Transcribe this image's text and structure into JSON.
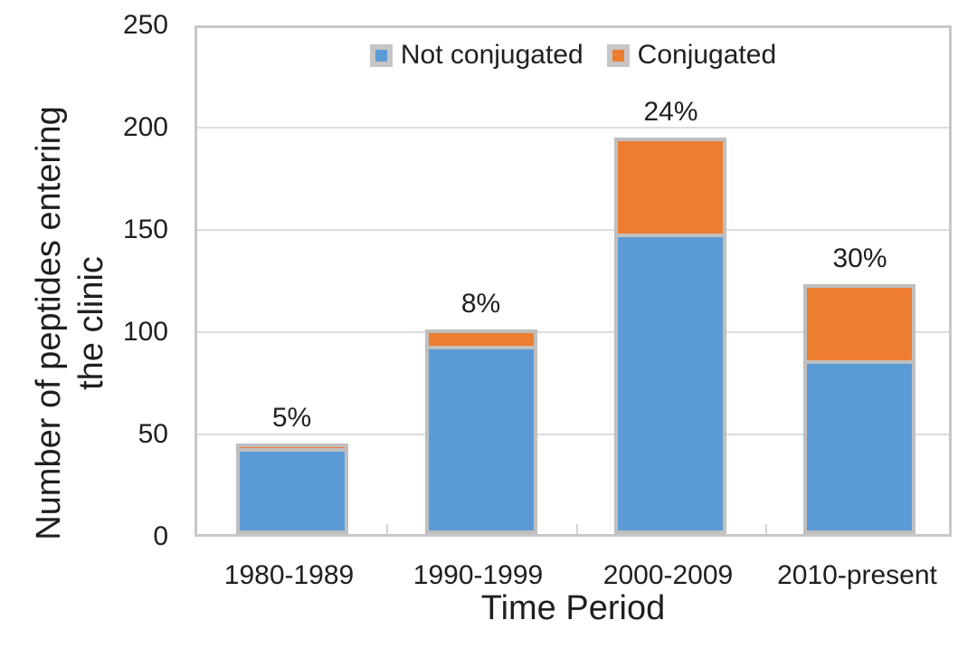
{
  "chart_data": {
    "type": "bar",
    "stacked": true,
    "title": "",
    "xlabel": "Time Period",
    "ylabel": "Number of peptides entering the clinic",
    "ylabel_lines": [
      "Number of peptides entering",
      "the clinic"
    ],
    "categories": [
      "1980-1989",
      "1990-1999",
      "2000-2009",
      "2010-present"
    ],
    "series": [
      {
        "name": "Not conjugated",
        "color": "#5B9BD5",
        "values": [
          42,
          92,
          147,
          85
        ]
      },
      {
        "name": "Conjugated",
        "color": "#ED7D31",
        "values": [
          2,
          8,
          47,
          37
        ]
      }
    ],
    "bar_labels": [
      "5%",
      "8%",
      "24%",
      "30%"
    ],
    "ylim": [
      0,
      250
    ],
    "yticks": [
      0,
      50,
      100,
      150,
      200,
      250
    ],
    "grid": true,
    "legend_position": "top-center"
  },
  "colors": {
    "not_conjugated": "#5B9BD5",
    "conjugated": "#ED7D31",
    "bar_border": "#BFBFBF",
    "gridline": "#DCDCDC",
    "plot_border": "#C7C7C7",
    "legend_swatch_border": "#C6C6C6",
    "text": "#1F1F1F",
    "background": "#FFFFFF"
  }
}
